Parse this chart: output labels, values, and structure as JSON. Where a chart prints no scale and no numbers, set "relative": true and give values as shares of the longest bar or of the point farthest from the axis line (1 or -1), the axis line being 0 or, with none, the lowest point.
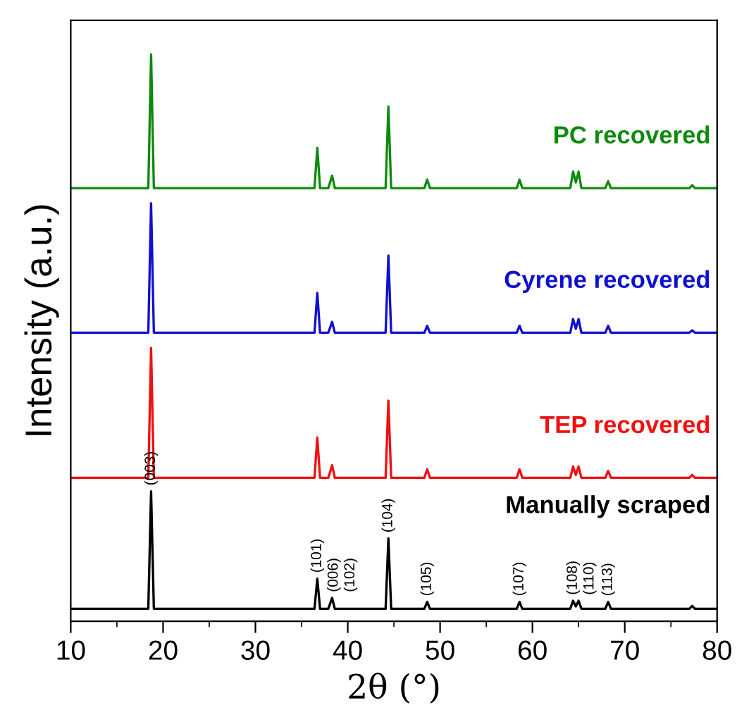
{
  "chart_data": {
    "type": "line",
    "relative": true,
    "xlabel": "2θ (°)",
    "ylabel": "Intensity (a.u.)",
    "xlim": [
      10,
      80
    ],
    "xticks": [
      10,
      20,
      30,
      40,
      50,
      60,
      70,
      80
    ],
    "tick_labels": "x",
    "grid": false,
    "legend": false,
    "marker": "none",
    "line_style": "solid",
    "x": [
      10,
      18.4,
      18.7,
      19.0,
      36.4,
      36.7,
      37.0,
      37.9,
      38.3,
      38.6,
      44.1,
      44.4,
      44.7,
      48.3,
      48.6,
      48.9,
      58.3,
      58.6,
      58.9,
      64.1,
      64.4,
      64.7,
      65.0,
      65.3,
      67.9,
      68.2,
      68.5,
      77.0,
      77.3,
      77.6,
      80
    ],
    "series": [
      {
        "name": "Manually scraped",
        "color": "#000000",
        "values": [
          0.022,
          0.022,
          0.229,
          0.022,
          0.022,
          0.075,
          0.022,
          0.022,
          0.041,
          0.022,
          0.022,
          0.146,
          0.022,
          0.022,
          0.034,
          0.022,
          0.022,
          0.034,
          0.022,
          0.022,
          0.036,
          0.026,
          0.036,
          0.022,
          0.022,
          0.034,
          0.022,
          0.022,
          0.027,
          0.022,
          0.022
        ]
      },
      {
        "name": "TEP recovered",
        "color": "#f01010",
        "values": [
          0.253,
          0.253,
          0.482,
          0.253,
          0.253,
          0.324,
          0.253,
          0.253,
          0.275,
          0.253,
          0.253,
          0.389,
          0.253,
          0.253,
          0.268,
          0.253,
          0.253,
          0.268,
          0.253,
          0.253,
          0.273,
          0.258,
          0.273,
          0.253,
          0.253,
          0.265,
          0.253,
          0.253,
          0.258,
          0.253,
          0.253
        ]
      },
      {
        "name": "Cyrene recovered",
        "color": "#1010d0",
        "values": [
          0.509,
          0.509,
          0.737,
          0.509,
          0.509,
          0.579,
          0.509,
          0.509,
          0.528,
          0.509,
          0.509,
          0.645,
          0.509,
          0.509,
          0.521,
          0.509,
          0.509,
          0.521,
          0.509,
          0.509,
          0.533,
          0.516,
          0.533,
          0.509,
          0.509,
          0.521,
          0.509,
          0.509,
          0.513,
          0.509,
          0.509
        ]
      },
      {
        "name": "PC recovered",
        "color": "#0e8a0e",
        "values": [
          0.764,
          0.764,
          1.0,
          0.764,
          0.764,
          0.835,
          0.764,
          0.764,
          0.786,
          0.764,
          0.764,
          0.908,
          0.764,
          0.764,
          0.779,
          0.764,
          0.764,
          0.779,
          0.764,
          0.764,
          0.793,
          0.774,
          0.793,
          0.764,
          0.764,
          0.776,
          0.764,
          0.764,
          0.769,
          0.764,
          0.764
        ]
      }
    ],
    "annotations": [
      {
        "text": "(003)",
        "x": 18.7,
        "y": 0.229
      },
      {
        "text": "(101)",
        "x": 36.7,
        "y": 0.075
      },
      {
        "text": "(006)",
        "x": 37.9,
        "y": 0.041
      },
      {
        "text": "(102)",
        "x": 38.3,
        "y": 0.041
      },
      {
        "text": "(104)",
        "x": 44.4,
        "y": 0.146
      },
      {
        "text": "(105)",
        "x": 48.6,
        "y": 0.034
      },
      {
        "text": "(107)",
        "x": 58.6,
        "y": 0.034
      },
      {
        "text": "(108)",
        "x": 64.4,
        "y": 0.036
      },
      {
        "text": "(110)",
        "x": 65.0,
        "y": 0.036
      },
      {
        "text": "(113)",
        "x": 68.2,
        "y": 0.034
      }
    ]
  }
}
